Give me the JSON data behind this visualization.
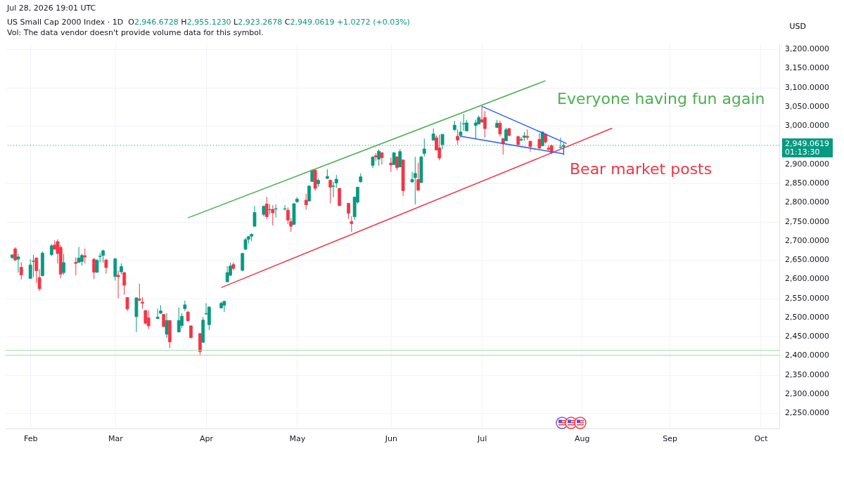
{
  "chart_data": {
    "type": "candlestick",
    "title": "US Small Cap 2000 Index · 1D",
    "subtitle": "O2,946.6728 H2,955.1230 L2,923.2678 C2,949.0619 +1.0272 (+0.03%)",
    "ylabel": "USD",
    "annotations": [
      "Jul 28, 2026 19:01 UTC",
      "Vol: The data vendor doesn't provide volume data for this symbol.",
      "01:13:30",
      "Everyone having fun again",
      "Bear market posts"
    ],
    "x": [
      "2026-01-27",
      "2026-01-28",
      "2026-01-29",
      "2026-01-30",
      "2026-02-02",
      "2026-02-03",
      "2026-02-04",
      "2026-02-05",
      "2026-02-06",
      "2026-02-09",
      "2026-02-10",
      "2026-02-11",
      "2026-02-12",
      "2026-02-13",
      "2026-02-17",
      "2026-02-18",
      "2026-02-19",
      "2026-02-20",
      "2026-02-23",
      "2026-02-24",
      "2026-02-25",
      "2026-02-26",
      "2026-02-27",
      "2026-03-02",
      "2026-03-03",
      "2026-03-04",
      "2026-03-05",
      "2026-03-06",
      "2026-03-09",
      "2026-03-10",
      "2026-03-11",
      "2026-03-12",
      "2026-03-13",
      "2026-03-16",
      "2026-03-17",
      "2026-03-18",
      "2026-03-19",
      "2026-03-20",
      "2026-03-23",
      "2026-03-24",
      "2026-03-25",
      "2026-03-26",
      "2026-03-27",
      "2026-03-30",
      "2026-03-31",
      "2026-04-01",
      "2026-04-02",
      "2026-04-06",
      "2026-04-07",
      "2026-04-08",
      "2026-04-09",
      "2026-04-10",
      "2026-04-13",
      "2026-04-14",
      "2026-04-15",
      "2026-04-16",
      "2026-04-17",
      "2026-04-20",
      "2026-04-21",
      "2026-04-22",
      "2026-04-23",
      "2026-04-24",
      "2026-04-27",
      "2026-04-28",
      "2026-04-29",
      "2026-04-30",
      "2026-05-01",
      "2026-05-04",
      "2026-05-05",
      "2026-05-06",
      "2026-05-07",
      "2026-05-08",
      "2026-05-11",
      "2026-05-12",
      "2026-05-13",
      "2026-05-14",
      "2026-05-15",
      "2026-05-18",
      "2026-05-19",
      "2026-05-20",
      "2026-05-21",
      "2026-05-22",
      "2026-05-26",
      "2026-05-27",
      "2026-05-28",
      "2026-05-29",
      "2026-06-01",
      "2026-06-02",
      "2026-06-03",
      "2026-06-04",
      "2026-06-05",
      "2026-06-08",
      "2026-06-09",
      "2026-06-10",
      "2026-06-11",
      "2026-06-12",
      "2026-06-15",
      "2026-06-16",
      "2026-06-17",
      "2026-06-18",
      "2026-06-22",
      "2026-06-23",
      "2026-06-24",
      "2026-06-25",
      "2026-06-26",
      "2026-06-29",
      "2026-06-30",
      "2026-07-01",
      "2026-07-02",
      "2026-07-06",
      "2026-07-07",
      "2026-07-08",
      "2026-07-09",
      "2026-07-10",
      "2026-07-13",
      "2026-07-14",
      "2026-07-15",
      "2026-07-16",
      "2026-07-17",
      "2026-07-20",
      "2026-07-21",
      "2026-07-22",
      "2026-07-23",
      "2026-07-24",
      "2026-07-27",
      "2026-07-28"
    ],
    "ohlc": [
      [
        2656,
        2666,
        2653,
        2663
      ],
      [
        2679,
        2683,
        2647,
        2650
      ],
      [
        2652,
        2666,
        2617,
        2658
      ],
      [
        2631,
        2644,
        2599,
        2611
      ],
      [
        2602,
        2652,
        2600,
        2637
      ],
      [
        2646,
        2663,
        2605,
        2647
      ],
      [
        2655,
        2657,
        2590,
        2622
      ],
      [
        2604,
        2626,
        2569,
        2575
      ],
      [
        2609,
        2672,
        2607,
        2668
      ],
      [
        2664,
        2692,
        2660,
        2687
      ],
      [
        2689,
        2701,
        2677,
        2678
      ],
      [
        2698,
        2704,
        2641,
        2667
      ],
      [
        2683,
        2689,
        2602,
        2613
      ],
      [
        2617,
        2666,
        2611,
        2643
      ],
      [
        2644,
        2657,
        2610,
        2641
      ],
      [
        2644,
        2684,
        2642,
        2655
      ],
      [
        2646,
        2666,
        2635,
        2662
      ],
      [
        2661,
        2680,
        2641,
        2658
      ],
      [
        2652,
        2655,
        2600,
        2618
      ],
      [
        2618,
        2653,
        2616,
        2649
      ],
      [
        2659,
        2669,
        2643,
        2660
      ],
      [
        2662,
        2677,
        2643,
        2674
      ],
      [
        2650,
        2653,
        2614,
        2630
      ],
      [
        2607,
        2655,
        2596,
        2653
      ],
      [
        2610,
        2622,
        2550,
        2606
      ],
      [
        2619,
        2641,
        2612,
        2633
      ],
      [
        2617,
        2619,
        2559,
        2584
      ],
      [
        2552,
        2553,
        2517,
        2522
      ],
      [
        2502,
        2553,
        2462,
        2551
      ],
      [
        2548,
        2588,
        2543,
        2545
      ],
      [
        2540,
        2553,
        2523,
        2537
      ],
      [
        2518,
        2519,
        2481,
        2485
      ],
      [
        2499,
        2518,
        2470,
        2478
      ],
      [
        2497,
        2523,
        2496,
        2501
      ],
      [
        2511,
        2532,
        2509,
        2517
      ],
      [
        2508,
        2509,
        2475,
        2476
      ],
      [
        2456,
        2511,
        2447,
        2492
      ],
      [
        2492,
        2493,
        2420,
        2436
      ],
      [
        2462,
        2526,
        2461,
        2492
      ],
      [
        2479,
        2511,
        2472,
        2503
      ],
      [
        2523,
        2544,
        2517,
        2533
      ],
      [
        2514,
        2517,
        2490,
        2491
      ],
      [
        2478,
        2479,
        2446,
        2447
      ],
      [
        2458,
        2459,
        2402,
        2411
      ],
      [
        2435,
        2501,
        2434,
        2493
      ],
      [
        2509,
        2537,
        2507,
        2510
      ],
      [
        2481,
        2529,
        2467,
        2527
      ],
      [
        2525,
        2541,
        2523,
        2537
      ],
      [
        2532,
        2544,
        2514,
        2542
      ],
      [
        2593,
        2634,
        2592,
        2617
      ],
      [
        2610,
        2643,
        2608,
        2634
      ],
      [
        2638,
        2644,
        2623,
        2628
      ],
      [
        2623,
        2669,
        2620,
        2667
      ],
      [
        2678,
        2708,
        2676,
        2703
      ],
      [
        2704,
        2712,
        2693,
        2711
      ],
      [
        2712,
        2719,
        2699,
        2717
      ],
      [
        2738,
        2791,
        2737,
        2774
      ],
      [
        2769,
        2792,
        2764,
        2790
      ],
      [
        2796,
        2815,
        2757,
        2763
      ],
      [
        2781,
        2796,
        2769,
        2782
      ],
      [
        2782,
        2793,
        2740,
        2773
      ],
      [
        2783,
        2795,
        2761,
        2784
      ],
      [
        2783,
        2793,
        2779,
        2784
      ],
      [
        2780,
        2787,
        2744,
        2754
      ],
      [
        2750,
        2760,
        2723,
        2738
      ],
      [
        2743,
        2799,
        2741,
        2797
      ],
      [
        2802,
        2814,
        2799,
        2809
      ],
      [
        2806,
        2823,
        2781,
        2794
      ],
      [
        2804,
        2844,
        2803,
        2843
      ],
      [
        2855,
        2887,
        2854,
        2884
      ],
      [
        2884,
        2887,
        2831,
        2837
      ],
      [
        2849,
        2863,
        2841,
        2858
      ],
      [
        2863,
        2887,
        2861,
        2868
      ],
      [
        2858,
        2860,
        2798,
        2840
      ],
      [
        2842,
        2854,
        2814,
        2843
      ],
      [
        2851,
        2872,
        2838,
        2861
      ],
      [
        2837,
        2838,
        2790,
        2792
      ],
      [
        2798,
        2799,
        2757,
        2772
      ],
      [
        2750,
        2764,
        2723,
        2745
      ],
      [
        2763,
        2815,
        2755,
        2814
      ],
      [
        2801,
        2841,
        2797,
        2840
      ],
      [
        2854,
        2876,
        2852,
        2867
      ],
      [
        2897,
        2920,
        2890,
        2919
      ],
      [
        2922,
        2929,
        2908,
        2919
      ],
      [
        2913,
        2939,
        2896,
        2934
      ],
      [
        2930,
        2931,
        2899,
        2917
      ],
      [
        2903,
        2917,
        2880,
        2898
      ],
      [
        2899,
        2931,
        2898,
        2930
      ],
      [
        2919,
        2921,
        2884,
        2891
      ],
      [
        2893,
        2940,
        2892,
        2933
      ],
      [
        2911,
        2912,
        2817,
        2831
      ],
      [
        2854,
        2880,
        2851,
        2860
      ],
      [
        2865,
        2919,
        2795,
        2876
      ],
      [
        2860,
        2904,
        2831,
        2832
      ],
      [
        2852,
        2922,
        2851,
        2919
      ],
      [
        2928,
        2967,
        2920,
        2940
      ],
      [
        2963,
        2993,
        2961,
        2979
      ],
      [
        2969,
        2975,
        2936,
        2937
      ],
      [
        2943,
        2977,
        2910,
        2916
      ],
      [
        2951,
        2979,
        2939,
        2978
      ],
      [
        2990,
        3013,
        2987,
        3002
      ],
      [
        2973,
        2991,
        2951,
        2963
      ],
      [
        2975,
        3011,
        2969,
        2984
      ],
      [
        3005,
        3031,
        2987,
        3006
      ],
      [
        2987,
        3016,
        2986,
        3008
      ],
      [
        3001,
        3016,
        2967,
        3008
      ],
      [
        3005,
        3027,
        3004,
        3022
      ],
      [
        3016,
        3051,
        3008,
        3010
      ],
      [
        3022,
        3039,
        2970,
        2993
      ],
      [
        2996,
        3016,
        2995,
        3007
      ],
      [
        3007,
        3014,
        2972,
        2979
      ],
      [
        2967,
        2968,
        2925,
        2953
      ],
      [
        2961,
        2995,
        2960,
        2990
      ],
      [
        2993,
        2995,
        2973,
        2975
      ],
      [
        2972,
        2975,
        2950,
        2951
      ],
      [
        2963,
        2971,
        2960,
        2965
      ],
      [
        2970,
        2984,
        2961,
        2974
      ],
      [
        2973,
        2991,
        2963,
        2970
      ],
      [
        2960,
        2961,
        2933,
        2946
      ],
      [
        2965,
        2981,
        2939,
        2942
      ],
      [
        2948,
        2986,
        2947,
        2984
      ],
      [
        2979,
        2980,
        2954,
        2958
      ],
      [
        2942,
        2949,
        2933,
        2939
      ],
      [
        2948,
        2951,
        2926,
        2930
      ],
      [
        2944,
        2969,
        2939,
        2945
      ],
      [
        2946.6728,
        2955.123,
        2923.2678,
        2949.0619
      ]
    ],
    "series": [
      {
        "type": "line",
        "color": "#4caf50",
        "x": [
          "2026-03-26",
          "2026-07-22"
        ],
        "values": [
          2760,
          3118
        ]
      },
      {
        "type": "line",
        "color": "#f23645",
        "x": [
          "2026-04-06",
          "2026-08-13"
        ],
        "values": [
          2578,
          2994
        ]
      },
      {
        "type": "line",
        "color": "#2962ff",
        "x": [
          "2026-07-01",
          "2026-07-29"
        ],
        "values": [
          3051,
          2954
        ]
      },
      {
        "type": "line",
        "color": "#2962ff",
        "x": [
          "2026-06-24",
          "2026-07-28",
          "2026-07-28"
        ],
        "values": [
          2973,
          2927,
          2947
        ]
      }
    ],
    "ref_lines": [
      {
        "axis": "y",
        "value": 2414,
        "color": "#a5d6a7",
        "line_style": "solid"
      },
      {
        "axis": "y",
        "value": 2401,
        "color": "#a5d6a7",
        "line_style": "solid"
      },
      {
        "axis": "y",
        "value": 2949.0619,
        "label": "2,949.0619",
        "color": "#089981",
        "line_style": "dotted"
      }
    ],
    "xlim": [
      "2026-01-26",
      "2026-10-06"
    ],
    "xticks": [
      {
        "value": "2026-02-02",
        "label": "Feb"
      },
      {
        "value": "2026-03-02",
        "label": "Mar"
      },
      {
        "value": "2026-04-01",
        "label": "Apr"
      },
      {
        "value": "2026-05-01",
        "label": "May"
      },
      {
        "value": "2026-06-01",
        "label": "Jun"
      },
      {
        "value": "2026-07-01",
        "label": "Jul"
      },
      {
        "value": "2026-08-03",
        "label": "Aug"
      },
      {
        "value": "2026-09-01",
        "label": "Sep"
      },
      {
        "value": "2026-10-01",
        "label": "Oct"
      }
    ],
    "ylim": [
      2210,
      3215
    ],
    "yticks": [
      {
        "value": 2250,
        "label": "2,250.0000"
      },
      {
        "value": 2300,
        "label": "2,300.0000"
      },
      {
        "value": 2350,
        "label": "2,350.0000"
      },
      {
        "value": 2400,
        "label": "2,400.0000"
      },
      {
        "value": 2450,
        "label": "2,450.0000"
      },
      {
        "value": 2500,
        "label": "2,500.0000"
      },
      {
        "value": 2550,
        "label": "2,550.0000"
      },
      {
        "value": 2600,
        "label": "2,600.0000"
      },
      {
        "value": 2650,
        "label": "2,650.0000"
      },
      {
        "value": 2700,
        "label": "2,700.0000"
      },
      {
        "value": 2750,
        "label": "2,750.0000"
      },
      {
        "value": 2800,
        "label": "2,800.0000"
      },
      {
        "value": 2850,
        "label": "2,850.0000"
      },
      {
        "value": 2900,
        "label": "2,900.0000"
      },
      {
        "value": 3000,
        "label": "3,000.0000"
      },
      {
        "value": 3050,
        "label": "3,050.0000"
      },
      {
        "value": 3100,
        "label": "3,100.0000"
      },
      {
        "value": 3150,
        "label": "3,150.0000"
      },
      {
        "value": 3200,
        "label": "3,200.0000"
      }
    ],
    "grid": true
  }
}
